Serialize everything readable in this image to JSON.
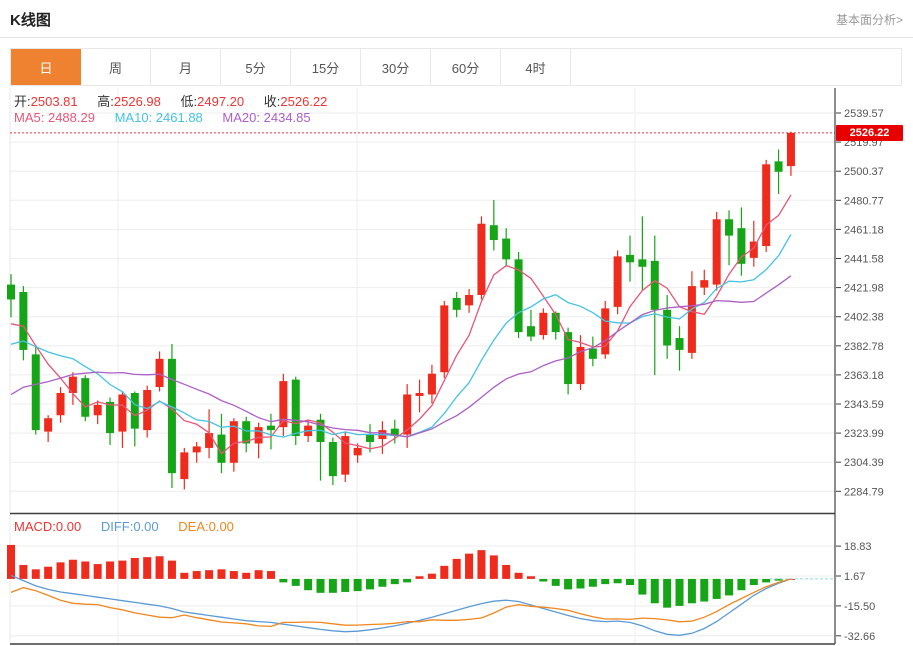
{
  "header": {
    "title": "K线图",
    "link_label": "基本面分析>"
  },
  "tabs": [
    {
      "id": "day",
      "label": "日",
      "selected": true
    },
    {
      "id": "week",
      "label": "周",
      "selected": false
    },
    {
      "id": "month",
      "label": "月",
      "selected": false
    },
    {
      "id": "5min",
      "label": "5分",
      "selected": false
    },
    {
      "id": "15min",
      "label": "15分",
      "selected": false
    },
    {
      "id": "30min",
      "label": "30分",
      "selected": false
    },
    {
      "id": "60min",
      "label": "60分",
      "selected": false
    },
    {
      "id": "4hour",
      "label": "4时",
      "selected": false
    }
  ],
  "quote": {
    "open_label": "开:",
    "open": "2503.81",
    "high_label": "高:",
    "high": "2526.98",
    "low_label": "低:",
    "low": "2497.20",
    "close_label": "收:",
    "close": "2526.22"
  },
  "ma_legend": {
    "ma5_label": "MA5:",
    "ma5": "2488.29",
    "ma10_label": "MA10:",
    "ma10": "2461.88",
    "ma20_label": "MA20:",
    "ma20": "2434.85"
  },
  "macd_legend": {
    "macd_label": "MACD:",
    "macd": "0.00",
    "diff_label": "DIFF:",
    "diff": "0.00",
    "dea_label": "DEA:",
    "dea": "0.00"
  },
  "price_tag": "2526.22",
  "colors": {
    "up": "#ee2b1c",
    "down": "#16a516",
    "ma5": "#e85577",
    "ma10": "#43c3e2",
    "ma20": "#ab5fc6",
    "diff": "#5b9bd5",
    "dea": "#f0871e",
    "tab_selected_bg": "#ef8231",
    "price_tag_bg": "#e80000",
    "price_line": "#f03044",
    "value_red": "#f03333",
    "label_dark": "#333333",
    "axis_text": "#555555",
    "grid": "#ededed",
    "frame": "#3f3f3f",
    "light_border": "#e8e8e8",
    "macd_zero_dash": "#8fd8ea"
  },
  "chart_data": {
    "type": "candlestick-with-macd",
    "main": {
      "y_axis_labels": [
        "2539.57",
        "2519.97",
        "2500.37",
        "2480.77",
        "2461.18",
        "2441.58",
        "2421.98",
        "2402.38",
        "2382.78",
        "2363.18",
        "2343.59",
        "2323.99",
        "2304.39",
        "2284.79"
      ],
      "price_line_value": 2526.22,
      "x_gridlines": [
        118,
        357,
        635
      ],
      "candles_ohlc": [
        [
          2424,
          2431,
          2402,
          2414
        ],
        [
          2419,
          2423,
          2373,
          2380
        ],
        [
          2377,
          2382,
          2323,
          2326
        ],
        [
          2325,
          2336,
          2318,
          2334
        ],
        [
          2336,
          2355,
          2331,
          2351
        ],
        [
          2351,
          2365,
          2343,
          2362
        ],
        [
          2361,
          2363,
          2332,
          2335
        ],
        [
          2336,
          2346,
          2330,
          2343
        ],
        [
          2345,
          2348,
          2316,
          2324
        ],
        [
          2325,
          2352,
          2314,
          2350
        ],
        [
          2351,
          2352,
          2315,
          2327
        ],
        [
          2326,
          2356,
          2321,
          2353
        ],
        [
          2355,
          2379,
          2352,
          2374
        ],
        [
          2374,
          2384,
          2287,
          2297
        ],
        [
          2293,
          2314,
          2286,
          2311
        ],
        [
          2311,
          2318,
          2304,
          2315
        ],
        [
          2314,
          2340,
          2307,
          2324
        ],
        [
          2323,
          2337,
          2297,
          2304
        ],
        [
          2304,
          2334,
          2298,
          2332
        ],
        [
          2332,
          2335,
          2311,
          2317
        ],
        [
          2317,
          2331,
          2307,
          2328
        ],
        [
          2329,
          2337,
          2313,
          2326
        ],
        [
          2328,
          2364,
          2322,
          2359
        ],
        [
          2360,
          2362,
          2316,
          2322
        ],
        [
          2322,
          2333,
          2318,
          2329
        ],
        [
          2333,
          2337,
          2292,
          2318
        ],
        [
          2318,
          2321,
          2289,
          2295
        ],
        [
          2296,
          2325,
          2291,
          2322
        ],
        [
          2309,
          2317,
          2304,
          2314
        ],
        [
          2323,
          2330,
          2311,
          2318
        ],
        [
          2320,
          2332,
          2310,
          2326
        ],
        [
          2327,
          2333,
          2317,
          2322
        ],
        [
          2323,
          2357,
          2314,
          2350
        ],
        [
          2349,
          2360,
          2338,
          2351
        ],
        [
          2350,
          2370,
          2344,
          2364
        ],
        [
          2365,
          2413,
          2361,
          2410
        ],
        [
          2415,
          2419,
          2402,
          2407
        ],
        [
          2410,
          2421,
          2405,
          2417
        ],
        [
          2417,
          2470,
          2414,
          2465
        ],
        [
          2464,
          2481,
          2447,
          2454
        ],
        [
          2455,
          2462,
          2436,
          2441
        ],
        [
          2441,
          2446,
          2388,
          2392
        ],
        [
          2396,
          2407,
          2386,
          2389
        ],
        [
          2390,
          2408,
          2387,
          2405
        ],
        [
          2405,
          2406,
          2387,
          2392
        ],
        [
          2392,
          2395,
          2350,
          2357
        ],
        [
          2357,
          2390,
          2353,
          2382
        ],
        [
          2381,
          2389,
          2369,
          2374
        ],
        [
          2377,
          2413,
          2374,
          2408
        ],
        [
          2409,
          2447,
          2404,
          2443
        ],
        [
          2444,
          2457,
          2426,
          2439
        ],
        [
          2441,
          2470,
          2420,
          2436
        ],
        [
          2440,
          2457,
          2363,
          2407
        ],
        [
          2407,
          2417,
          2374,
          2383
        ],
        [
          2388,
          2396,
          2366,
          2380
        ],
        [
          2378,
          2433,
          2374,
          2423
        ],
        [
          2422,
          2434,
          2417,
          2427
        ],
        [
          2424,
          2473,
          2420,
          2468
        ],
        [
          2468,
          2474,
          2437,
          2457
        ],
        [
          2462,
          2476,
          2430,
          2438
        ],
        [
          2442,
          2467,
          2436,
          2453
        ],
        [
          2450,
          2508,
          2446,
          2505
        ],
        [
          2507,
          2515,
          2485,
          2500
        ],
        [
          2503.81,
          2526.98,
          2497.2,
          2526.22
        ]
      ],
      "ma_seed_closes": [
        2280,
        2288,
        2296,
        2304,
        2312,
        2320,
        2328,
        2336,
        2344,
        2352,
        2358,
        2364,
        2370,
        2376,
        2382,
        2388,
        2392,
        2396,
        2398
      ]
    },
    "macd": {
      "y_axis_labels": [
        "18.83",
        "1.67",
        "-15.50",
        "-32.66"
      ],
      "histogram": [
        19.5,
        8,
        5.5,
        7,
        9.5,
        11,
        10,
        8.5,
        10,
        10.5,
        12,
        12.5,
        13,
        10.5,
        3.5,
        4.5,
        5,
        5.5,
        4.5,
        3.5,
        5,
        4.5,
        -2,
        -4,
        -6.5,
        -8,
        -8,
        -7.5,
        -7,
        -6,
        -4.5,
        -3,
        -2,
        1.5,
        3,
        7.5,
        11.5,
        14.5,
        16.5,
        13.5,
        8,
        3.5,
        1.5,
        -1.5,
        -4,
        -6,
        -5.5,
        -4.5,
        -3,
        -2.5,
        -3.5,
        -9,
        -14,
        -16.5,
        -15.5,
        -14,
        -13,
        -11.5,
        -9.5,
        -6.5,
        -3.5,
        -2,
        -1,
        0
      ],
      "diff": [
        2,
        -1,
        -4,
        -6,
        -7.5,
        -8.5,
        -9.5,
        -10.5,
        -11.5,
        -12.5,
        -13.5,
        -14.5,
        -15.5,
        -17,
        -19,
        -20,
        -21,
        -22,
        -23,
        -24,
        -24.5,
        -25,
        -26,
        -27,
        -28,
        -29,
        -29.8,
        -30.3,
        -30,
        -29.2,
        -28.2,
        -27,
        -25.5,
        -23.8,
        -22,
        -20,
        -18,
        -16,
        -14.2,
        -12.8,
        -12.2,
        -13,
        -15,
        -17,
        -19,
        -21,
        -22.8,
        -24,
        -24.5,
        -24.2,
        -25,
        -27,
        -29.8,
        -31.8,
        -32.4,
        -31.2,
        -28.5,
        -24.5,
        -19.5,
        -14.5,
        -9.5,
        -5.5,
        -2.5,
        0
      ]
    }
  }
}
